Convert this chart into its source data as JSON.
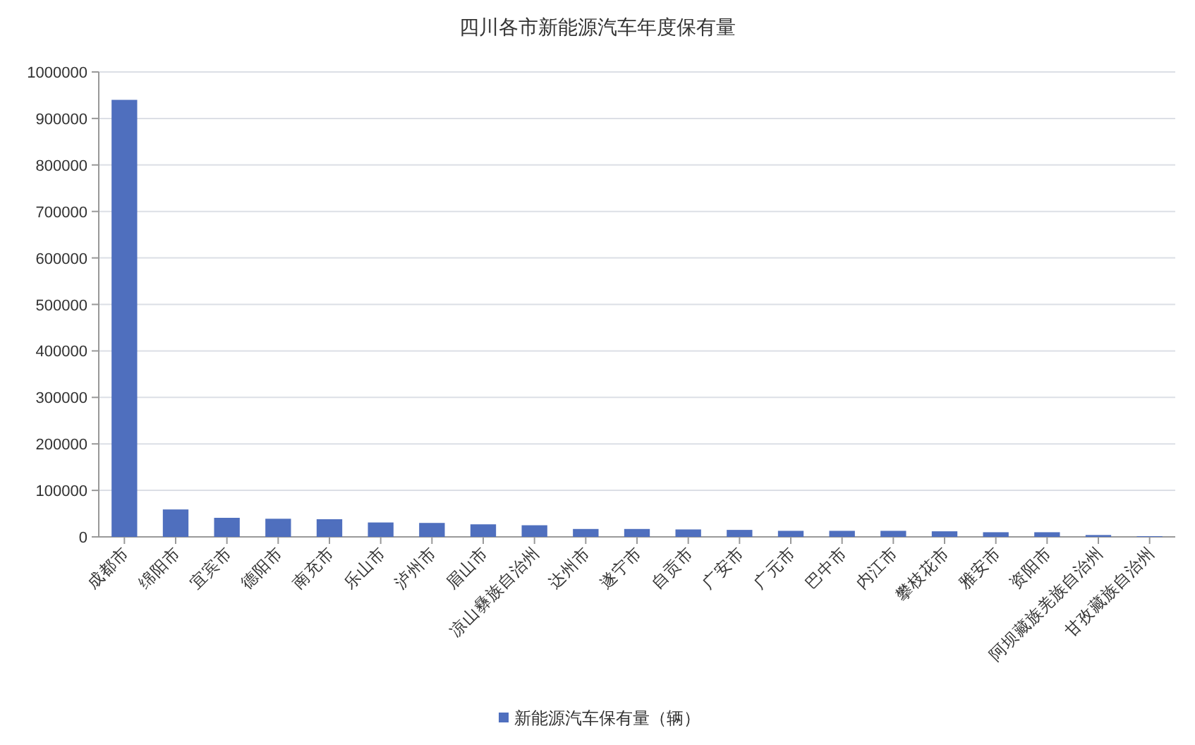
{
  "chart_data": {
    "type": "bar",
    "title": "四川各市新能源汽车年度保有量",
    "categories": [
      "成都市",
      "绵阳市",
      "宜宾市",
      "德阳市",
      "南充市",
      "乐山市",
      "泸州市",
      "眉山市",
      "凉山彝族自治州",
      "达州市",
      "遂宁市",
      "自贡市",
      "广安市",
      "广元市",
      "巴中市",
      "内江市",
      "攀枝花市",
      "雅安市",
      "资阳市",
      "阿坝藏族羌族自治州",
      "甘孜藏族自治州"
    ],
    "series": [
      {
        "name": "新能源汽车保有量（辆）",
        "color": "#4f6fbe",
        "values": [
          940000,
          59000,
          41000,
          39000,
          38000,
          31000,
          30000,
          27000,
          25000,
          17000,
          17000,
          16000,
          15000,
          13000,
          13000,
          13000,
          12000,
          10000,
          10000,
          4000,
          1500
        ]
      }
    ],
    "ylim": [
      0,
      1000000
    ],
    "yticks": [
      0,
      100000,
      200000,
      300000,
      400000,
      500000,
      600000,
      700000,
      800000,
      900000,
      1000000
    ],
    "grid": "y",
    "legend": "bottom"
  }
}
